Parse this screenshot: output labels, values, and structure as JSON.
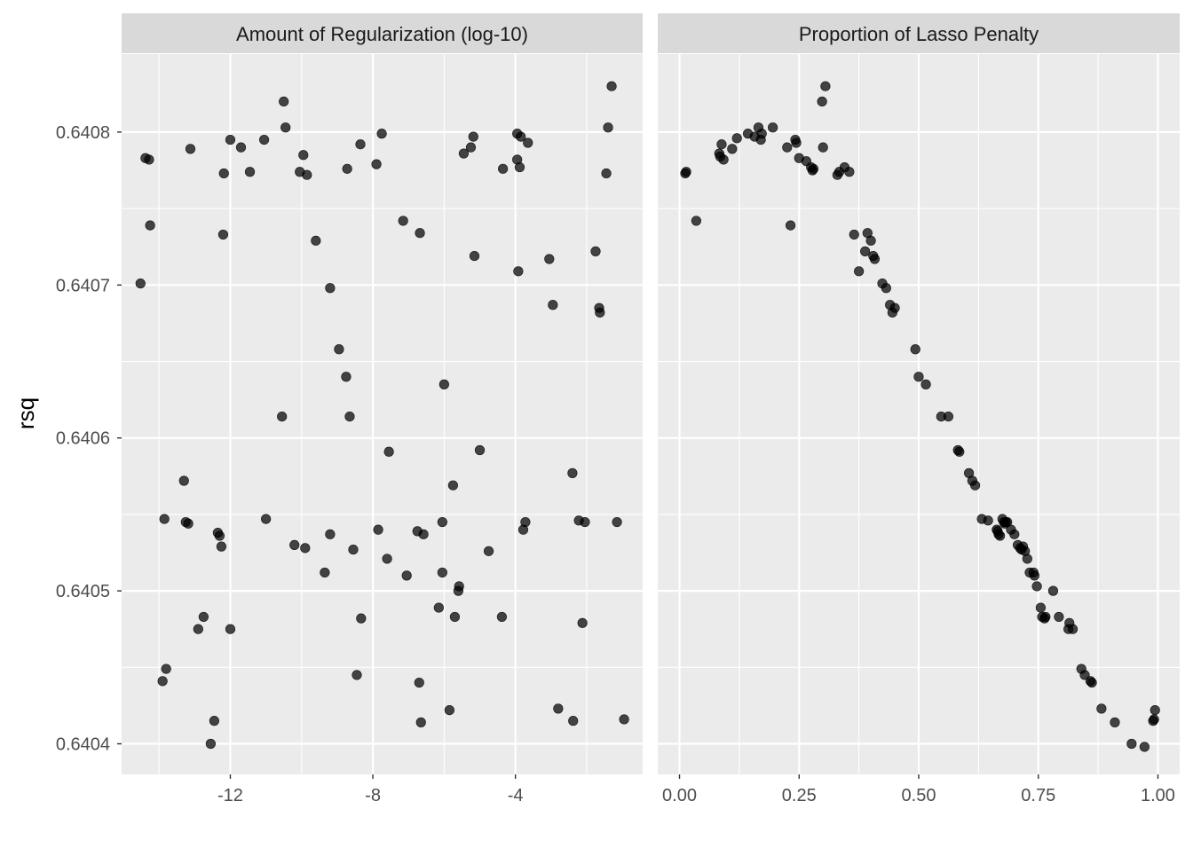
{
  "chart_data": {
    "type": "scatter",
    "ylabel": "rsq",
    "xlabel": "",
    "y_ticks": [
      "0.6404",
      "0.6405",
      "0.6406",
      "0.6407",
      "0.6408"
    ],
    "y_tick_values": [
      0.6404,
      0.6405,
      0.6406,
      0.6407,
      0.6408
    ],
    "ylim": [
      0.64038,
      0.640851
    ],
    "point_color": "#000000",
    "panel_bg": "#ebebeb",
    "strip_bg": "#d9d9d9",
    "grid_color": "#ffffff",
    "facets": [
      {
        "strip": "Amount of Regularization (log-10)",
        "xlim": [
          -15.05,
          -0.43
        ],
        "x_ticks": [
          "-12",
          "-8",
          "-4"
        ],
        "x_tick_values": [
          -12,
          -8,
          -4
        ],
        "x_minor": [
          -14,
          -10,
          -6,
          -2
        ],
        "points": [
          [
            -14.52,
            0.640701
          ],
          [
            -14.38,
            0.640783
          ],
          [
            -14.28,
            0.640782
          ],
          [
            -14.25,
            0.640739
          ],
          [
            -13.9,
            0.640441
          ],
          [
            -13.85,
            0.640547
          ],
          [
            -13.8,
            0.640449
          ],
          [
            -13.3,
            0.640572
          ],
          [
            -13.25,
            0.640545
          ],
          [
            -13.18,
            0.640544
          ],
          [
            -13.12,
            0.640789
          ],
          [
            -12.9,
            0.640475
          ],
          [
            -12.75,
            0.640483
          ],
          [
            -12.55,
            0.6404
          ],
          [
            -12.45,
            0.640415
          ],
          [
            -12.35,
            0.640538
          ],
          [
            -12.3,
            0.640536
          ],
          [
            -12.25,
            0.640529
          ],
          [
            -12.2,
            0.640733
          ],
          [
            -12.18,
            0.640773
          ],
          [
            -12.0,
            0.640795
          ],
          [
            -12.0,
            0.640475
          ],
          [
            -11.7,
            0.64079
          ],
          [
            -11.45,
            0.640774
          ],
          [
            -11.05,
            0.640795
          ],
          [
            -11.0,
            0.640547
          ],
          [
            -10.55,
            0.640614
          ],
          [
            -10.5,
            0.64082
          ],
          [
            -10.45,
            0.640803
          ],
          [
            -10.2,
            0.64053
          ],
          [
            -10.05,
            0.640774
          ],
          [
            -9.95,
            0.640785
          ],
          [
            -9.9,
            0.640528
          ],
          [
            -9.85,
            0.640772
          ],
          [
            -9.6,
            0.640729
          ],
          [
            -9.35,
            0.640512
          ],
          [
            -9.2,
            0.640698
          ],
          [
            -9.2,
            0.640537
          ],
          [
            -8.95,
            0.640658
          ],
          [
            -8.75,
            0.64064
          ],
          [
            -8.72,
            0.640776
          ],
          [
            -8.65,
            0.640614
          ],
          [
            -8.55,
            0.640527
          ],
          [
            -8.45,
            0.640445
          ],
          [
            -8.35,
            0.640792
          ],
          [
            -8.33,
            0.640482
          ],
          [
            -7.9,
            0.640779
          ],
          [
            -7.85,
            0.64054
          ],
          [
            -7.75,
            0.640799
          ],
          [
            -7.6,
            0.640521
          ],
          [
            -7.55,
            0.640591
          ],
          [
            -7.15,
            0.640742
          ],
          [
            -7.05,
            0.64051
          ],
          [
            -6.75,
            0.640539
          ],
          [
            -6.7,
            0.64044
          ],
          [
            -6.68,
            0.640734
          ],
          [
            -6.65,
            0.640414
          ],
          [
            -6.58,
            0.640537
          ],
          [
            -6.15,
            0.640489
          ],
          [
            -6.05,
            0.640545
          ],
          [
            -6.05,
            0.640512
          ],
          [
            -6.0,
            0.640635
          ],
          [
            -5.85,
            0.640422
          ],
          [
            -5.75,
            0.640569
          ],
          [
            -5.7,
            0.640483
          ],
          [
            -5.6,
            0.6405
          ],
          [
            -5.58,
            0.640503
          ],
          [
            -5.45,
            0.640786
          ],
          [
            -5.25,
            0.64079
          ],
          [
            -5.18,
            0.640797
          ],
          [
            -5.15,
            0.640719
          ],
          [
            -5.0,
            0.640592
          ],
          [
            -4.75,
            0.640526
          ],
          [
            -4.38,
            0.640483
          ],
          [
            -4.35,
            0.640776
          ],
          [
            -3.95,
            0.640782
          ],
          [
            -3.95,
            0.640799
          ],
          [
            -3.92,
            0.640709
          ],
          [
            -3.88,
            0.640777
          ],
          [
            -3.85,
            0.640797
          ],
          [
            -3.78,
            0.64054
          ],
          [
            -3.72,
            0.640545
          ],
          [
            -3.65,
            0.640793
          ],
          [
            -3.05,
            0.640717
          ],
          [
            -2.95,
            0.640687
          ],
          [
            -2.8,
            0.640423
          ],
          [
            -2.4,
            0.640577
          ],
          [
            -2.38,
            0.640415
          ],
          [
            -2.22,
            0.640546
          ],
          [
            -2.12,
            0.640479
          ],
          [
            -2.05,
            0.640545
          ],
          [
            -1.75,
            0.640722
          ],
          [
            -1.65,
            0.640685
          ],
          [
            -1.63,
            0.640682
          ],
          [
            -1.45,
            0.640773
          ],
          [
            -1.4,
            0.640803
          ],
          [
            -1.3,
            0.64083
          ],
          [
            -1.15,
            0.640545
          ],
          [
            -0.95,
            0.640416
          ]
        ]
      },
      {
        "strip": "Proportion of Lasso Penalty",
        "xlim": [
          -0.0455,
          1.0455
        ],
        "x_ticks": [
          "0.00",
          "0.25",
          "0.50",
          "0.75",
          "1.00"
        ],
        "x_tick_values": [
          0,
          0.25,
          0.5,
          0.75,
          1
        ],
        "x_minor": [
          0.125,
          0.375,
          0.625,
          0.875
        ],
        "points": [
          [
            0.012,
            0.640773
          ],
          [
            0.014,
            0.640774
          ],
          [
            0.035,
            0.640742
          ],
          [
            0.083,
            0.640786
          ],
          [
            0.085,
            0.640784
          ],
          [
            0.088,
            0.640792
          ],
          [
            0.092,
            0.640782
          ],
          [
            0.11,
            0.640789
          ],
          [
            0.12,
            0.640796
          ],
          [
            0.143,
            0.640799
          ],
          [
            0.157,
            0.640797
          ],
          [
            0.165,
            0.640803
          ],
          [
            0.17,
            0.640795
          ],
          [
            0.172,
            0.640799
          ],
          [
            0.195,
            0.640803
          ],
          [
            0.225,
            0.64079
          ],
          [
            0.232,
            0.640739
          ],
          [
            0.242,
            0.640795
          ],
          [
            0.244,
            0.640793
          ],
          [
            0.25,
            0.640783
          ],
          [
            0.265,
            0.640781
          ],
          [
            0.275,
            0.640777
          ],
          [
            0.278,
            0.640775
          ],
          [
            0.28,
            0.640776
          ],
          [
            0.298,
            0.64082
          ],
          [
            0.3,
            0.64079
          ],
          [
            0.305,
            0.64083
          ],
          [
            0.33,
            0.640772
          ],
          [
            0.334,
            0.640774
          ],
          [
            0.345,
            0.640777
          ],
          [
            0.355,
            0.640774
          ],
          [
            0.365,
            0.640733
          ],
          [
            0.375,
            0.640709
          ],
          [
            0.388,
            0.640722
          ],
          [
            0.393,
            0.640734
          ],
          [
            0.4,
            0.640729
          ],
          [
            0.405,
            0.640719
          ],
          [
            0.408,
            0.640717
          ],
          [
            0.424,
            0.640701
          ],
          [
            0.432,
            0.640698
          ],
          [
            0.44,
            0.640687
          ],
          [
            0.445,
            0.640682
          ],
          [
            0.45,
            0.640685
          ],
          [
            0.493,
            0.640658
          ],
          [
            0.5,
            0.64064
          ],
          [
            0.515,
            0.640635
          ],
          [
            0.547,
            0.640614
          ],
          [
            0.562,
            0.640614
          ],
          [
            0.582,
            0.640592
          ],
          [
            0.585,
            0.640591
          ],
          [
            0.605,
            0.640577
          ],
          [
            0.612,
            0.640572
          ],
          [
            0.618,
            0.640569
          ],
          [
            0.632,
            0.640547
          ],
          [
            0.645,
            0.640546
          ],
          [
            0.663,
            0.64054
          ],
          [
            0.665,
            0.640539
          ],
          [
            0.667,
            0.640537
          ],
          [
            0.67,
            0.640536
          ],
          [
            0.675,
            0.640547
          ],
          [
            0.678,
            0.640545
          ],
          [
            0.68,
            0.640544
          ],
          [
            0.682,
            0.640545
          ],
          [
            0.685,
            0.640545
          ],
          [
            0.693,
            0.64054
          ],
          [
            0.7,
            0.640537
          ],
          [
            0.707,
            0.64053
          ],
          [
            0.712,
            0.640528
          ],
          [
            0.715,
            0.640527
          ],
          [
            0.718,
            0.640529
          ],
          [
            0.722,
            0.640526
          ],
          [
            0.727,
            0.640521
          ],
          [
            0.732,
            0.640512
          ],
          [
            0.74,
            0.640512
          ],
          [
            0.742,
            0.64051
          ],
          [
            0.747,
            0.640503
          ],
          [
            0.755,
            0.640489
          ],
          [
            0.758,
            0.640483
          ],
          [
            0.763,
            0.640482
          ],
          [
            0.765,
            0.640483
          ],
          [
            0.781,
            0.6405
          ],
          [
            0.793,
            0.640483
          ],
          [
            0.813,
            0.640475
          ],
          [
            0.815,
            0.640479
          ],
          [
            0.822,
            0.640475
          ],
          [
            0.84,
            0.640449
          ],
          [
            0.847,
            0.640445
          ],
          [
            0.859,
            0.640441
          ],
          [
            0.862,
            0.64044
          ],
          [
            0.882,
            0.640423
          ],
          [
            0.91,
            0.640414
          ],
          [
            0.945,
            0.6404
          ],
          [
            0.972,
            0.640398
          ],
          [
            0.99,
            0.640415
          ],
          [
            0.992,
            0.640416
          ],
          [
            0.994,
            0.640422
          ]
        ]
      }
    ]
  }
}
